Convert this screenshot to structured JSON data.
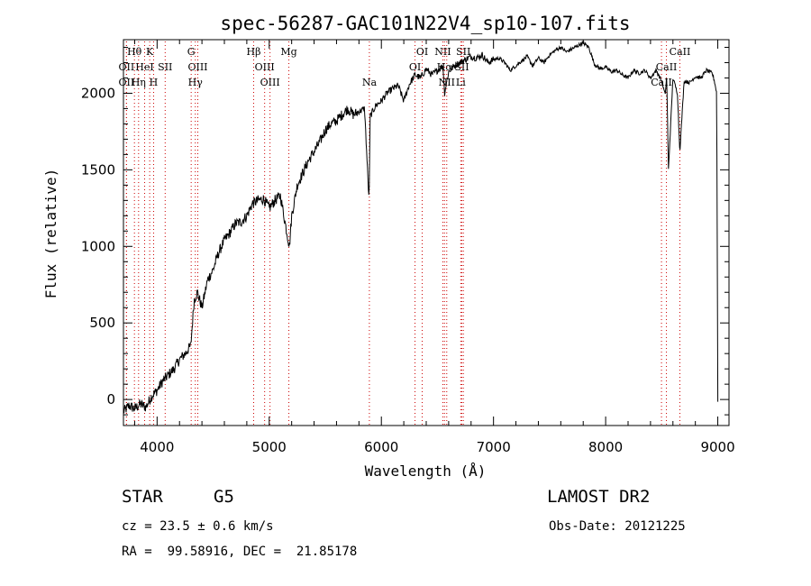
{
  "chart_data": {
    "type": "line",
    "title": "spec-56287-GAC101N22V4_sp10-107.fits",
    "xlabel": "Wavelength (Å)",
    "ylabel": "Flux (relative)",
    "xlim": [
      3700,
      9100
    ],
    "ylim": [
      -170,
      2350
    ],
    "xticks": [
      4000,
      5000,
      6000,
      7000,
      8000,
      9000
    ],
    "yticks": [
      0,
      500,
      1000,
      1500,
      2000
    ],
    "grid": false,
    "series": [
      {
        "x": [
          3700,
          3750,
          3800,
          3850,
          3900,
          3950,
          4000,
          4050,
          4100,
          4150,
          4200,
          4250,
          4300,
          4330,
          4360,
          4400,
          4450,
          4500,
          4550,
          4600,
          4650,
          4700,
          4750,
          4800,
          4850,
          4900,
          4950,
          5000,
          5050,
          5100,
          5150,
          5180,
          5200,
          5250,
          5300,
          5350,
          5400,
          5450,
          5500,
          5550,
          5600,
          5650,
          5700,
          5750,
          5800,
          5850,
          5890,
          5900,
          5950,
          6000,
          6050,
          6100,
          6150,
          6200,
          6250,
          6300,
          6350,
          6400,
          6450,
          6500,
          6550,
          6563,
          6600,
          6650,
          6700,
          6750,
          6800,
          6850,
          6900,
          6950,
          7000,
          7050,
          7100,
          7150,
          7200,
          7250,
          7300,
          7350,
          7400,
          7450,
          7500,
          7550,
          7600,
          7650,
          7700,
          7750,
          7800,
          7850,
          7900,
          7950,
          8000,
          8050,
          8100,
          8150,
          8200,
          8250,
          8300,
          8350,
          8400,
          8450,
          8500,
          8530,
          8545,
          8560,
          8600,
          8640,
          8662,
          8700,
          8750,
          8800,
          8850,
          8900,
          8950,
          8970,
          8990,
          9000
        ],
        "y": [
          -80,
          -40,
          -60,
          -30,
          -50,
          20,
          60,
          120,
          160,
          200,
          260,
          300,
          350,
          650,
          700,
          600,
          780,
          850,
          960,
          1040,
          1090,
          1150,
          1160,
          1200,
          1280,
          1300,
          1310,
          1250,
          1300,
          1330,
          1120,
          1000,
          1200,
          1400,
          1480,
          1560,
          1620,
          1680,
          1760,
          1800,
          1820,
          1860,
          1900,
          1860,
          1880,
          1900,
          1290,
          1850,
          1920,
          1950,
          2000,
          2030,
          2050,
          1950,
          2060,
          2120,
          2100,
          2160,
          2120,
          2150,
          2180,
          2000,
          2140,
          2180,
          2200,
          2220,
          2240,
          2230,
          2250,
          2200,
          2220,
          2230,
          2200,
          2150,
          2180,
          2210,
          2240,
          2180,
          2230,
          2200,
          2250,
          2280,
          2300,
          2270,
          2290,
          2310,
          2330,
          2300,
          2190,
          2160,
          2170,
          2140,
          2150,
          2120,
          2100,
          2150,
          2130,
          2150,
          2100,
          2150,
          2080,
          1990,
          2100,
          1500,
          2100,
          2000,
          1620,
          2080,
          2070,
          2110,
          2100,
          2150,
          2130,
          2080,
          2000,
          -10
        ]
      }
    ],
    "spectral_lines": [
      {
        "label": "Hθ",
        "x": 3798,
        "row": 1
      },
      {
        "label": "K",
        "x": 3934,
        "row": 1
      },
      {
        "label": "OII",
        "x": 3727,
        "row": 2
      },
      {
        "label": "HeI",
        "x": 3889,
        "row": 2
      },
      {
        "label": "SII",
        "x": 4072,
        "row": 2
      },
      {
        "label": "OII",
        "x": 3727,
        "row": 3
      },
      {
        "label": "Hη",
        "x": 3835,
        "row": 3
      },
      {
        "label": "H",
        "x": 3969,
        "row": 3
      },
      {
        "label": "G",
        "x": 4304,
        "row": 1
      },
      {
        "label": "OIII",
        "x": 4363,
        "row": 2
      },
      {
        "label": "Hγ",
        "x": 4341,
        "row": 3
      },
      {
        "label": "Hβ",
        "x": 4861,
        "row": 1
      },
      {
        "label": "OIII",
        "x": 4959,
        "row": 2
      },
      {
        "label": "OIII",
        "x": 5007,
        "row": 3
      },
      {
        "label": "Mg",
        "x": 5175,
        "row": 1
      },
      {
        "label": "Na",
        "x": 5893,
        "row": 3
      },
      {
        "label": "OI",
        "x": 6364,
        "row": 1
      },
      {
        "label": "OI",
        "x": 6300,
        "row": 2
      },
      {
        "label": "NII",
        "x": 6548,
        "row": 1
      },
      {
        "label": "SII",
        "x": 6731,
        "row": 1
      },
      {
        "label": "Hα",
        "x": 6563,
        "row": 2
      },
      {
        "label": "SII",
        "x": 6717,
        "row": 2
      },
      {
        "label": "NII",
        "x": 6583,
        "row": 3
      },
      {
        "label": "Li",
        "x": 6708,
        "row": 3
      },
      {
        "label": "CaII",
        "x": 8662,
        "row": 1
      },
      {
        "label": "CaII",
        "x": 8542,
        "row": 2
      },
      {
        "label": "CaII",
        "x": 8498,
        "row": 3
      }
    ],
    "line_color": "#000000",
    "marker_color": "#cc0000"
  },
  "info": {
    "object_type": "STAR",
    "subclass": "G5",
    "survey": "LAMOST DR2",
    "cz": "cz = 23.5 ± 0.6 km/s",
    "obs_date": "Obs-Date: 20121225",
    "coords": "RA =  99.58916, DEC =  21.85178"
  }
}
